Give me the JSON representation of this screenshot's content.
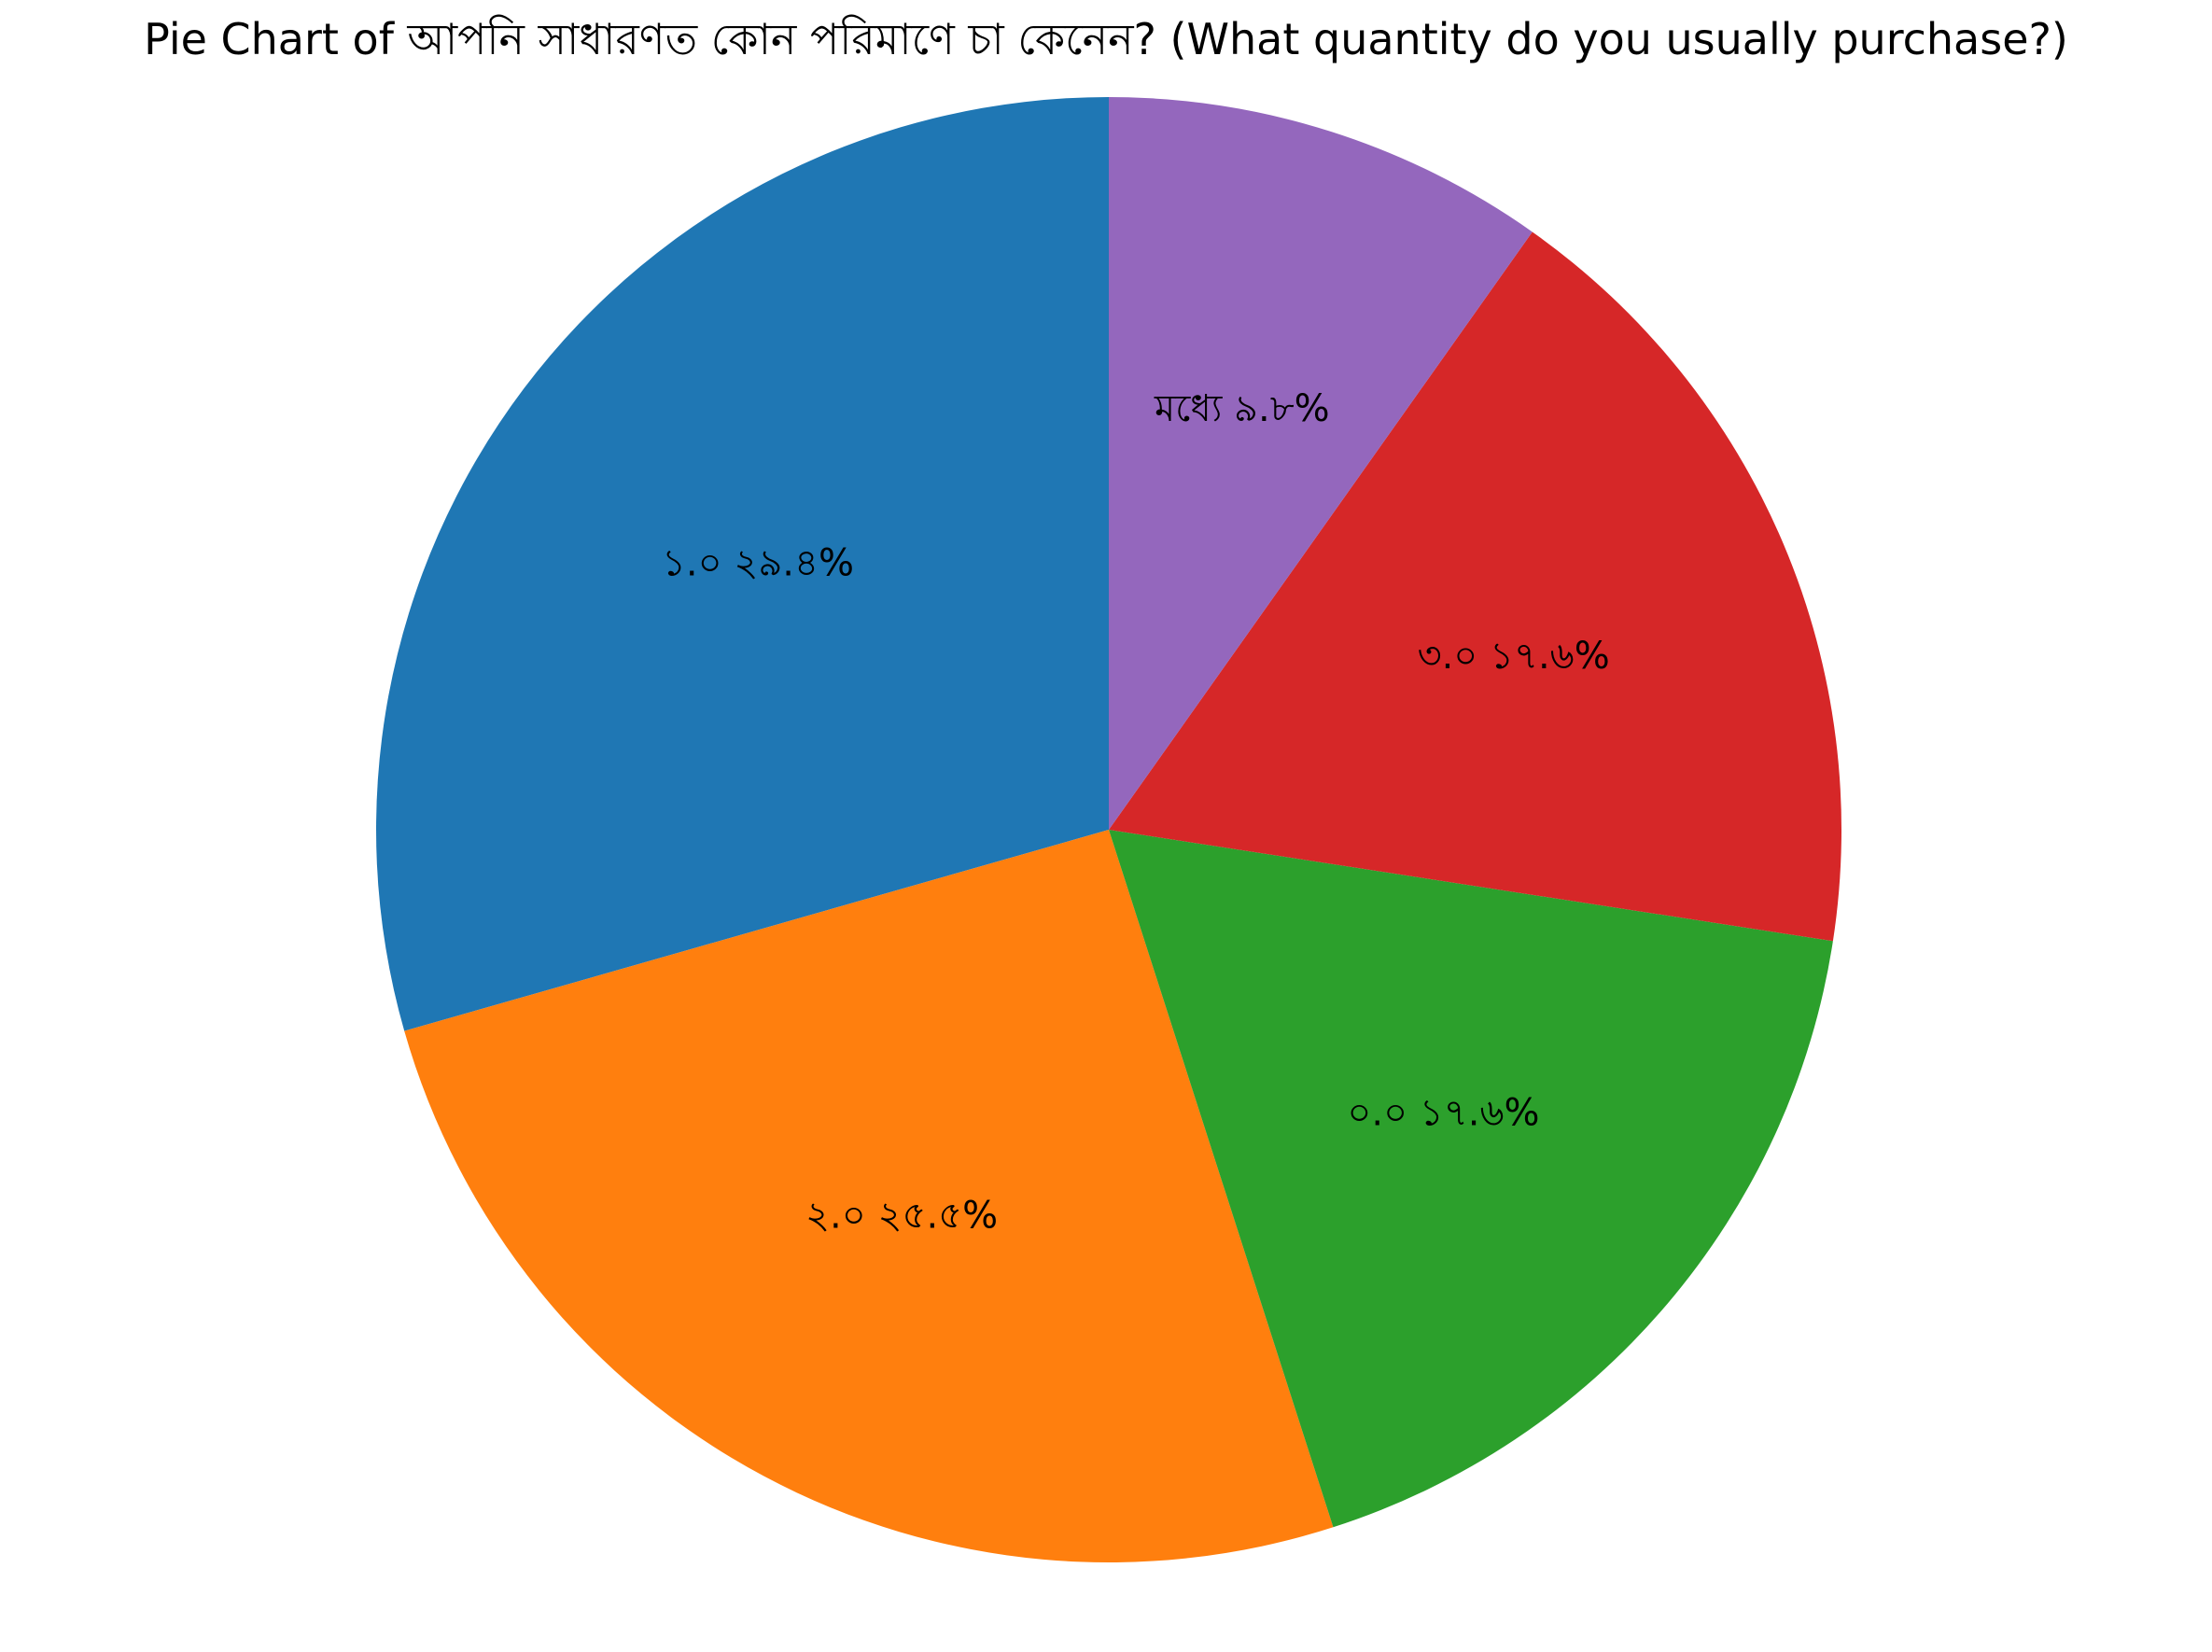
{
  "chart_data": {
    "type": "pie",
    "title": "Pie Chart of আপনি সাধারণত কোন পরিমাণে চা কেনেন? (What quantity do you usually purchase?)",
    "start_angle_deg": 90,
    "direction": "counterclockwise",
    "slices": [
      {
        "label": "১.০",
        "percent_label": "২৯.৪%",
        "value": 29.4,
        "color": "#1f77b4"
      },
      {
        "label": "২.০",
        "percent_label": "২৫.৫%",
        "value": 25.5,
        "color": "#ff7f0e"
      },
      {
        "label": "০.০",
        "percent_label": "১৭.৬%",
        "value": 17.6,
        "color": "#2ca02c"
      },
      {
        "label": "৩.০",
        "percent_label": "১৭.৬%",
        "value": 17.6,
        "color": "#d62728"
      },
      {
        "label": "মধ্যে",
        "percent_label": "৯.৮%",
        "value": 9.8,
        "color": "#9467bd"
      }
    ]
  }
}
